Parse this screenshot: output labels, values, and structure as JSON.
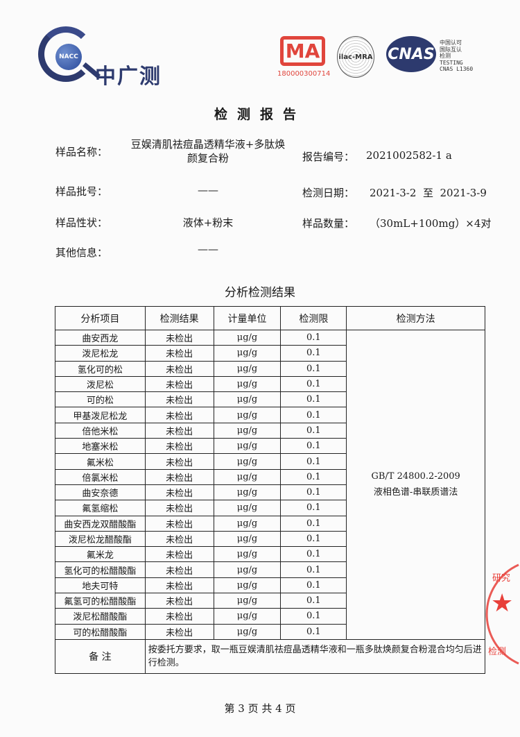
{
  "header": {
    "logo_badge": "NACC",
    "logo_name": "中广测",
    "cma_mark": "MA",
    "cma_number": "180000300714",
    "ilac_mark": "ilac-MRA",
    "cnas_mark": "CNAS",
    "cnas_text": [
      "中国认可",
      "国际互认",
      "检测",
      "TESTING",
      "CNAS L1360"
    ]
  },
  "title": "检测报告",
  "info": {
    "sample_name_label": "样品名称：",
    "sample_name_line1": "豆娱清肌祛痘晶透精华液+多肽焕",
    "sample_name_line2": "颜复合粉",
    "report_no_label": "报告编号：",
    "report_no": "2021002582-1 a",
    "batch_label": "样品批号：",
    "batch": "——",
    "test_date_label": "检测日期：",
    "test_date_from": "2021-3-2",
    "test_date_to_word": "至",
    "test_date_to": "2021-3-9",
    "state_label": "样品性状：",
    "state": "液体+粉末",
    "quantity_label": "样品数量：",
    "quantity": "（30mL+100mg）×4对",
    "other_label": "其他信息：",
    "other": "——"
  },
  "results": {
    "heading": "分析检测结果",
    "columns": [
      "分析项目",
      "检测结果",
      "计量单位",
      "检测限",
      "检测方法"
    ],
    "rows": [
      [
        "曲安西龙",
        "未检出",
        "μg/g",
        "0.1"
      ],
      [
        "泼尼松龙",
        "未检出",
        "μg/g",
        "0.1"
      ],
      [
        "氢化可的松",
        "未检出",
        "μg/g",
        "0.1"
      ],
      [
        "泼尼松",
        "未检出",
        "μg/g",
        "0.1"
      ],
      [
        "可的松",
        "未检出",
        "μg/g",
        "0.1"
      ],
      [
        "甲基泼尼松龙",
        "未检出",
        "μg/g",
        "0.1"
      ],
      [
        "倍他米松",
        "未检出",
        "μg/g",
        "0.1"
      ],
      [
        "地塞米松",
        "未检出",
        "μg/g",
        "0.1"
      ],
      [
        "氟米松",
        "未检出",
        "μg/g",
        "0.1"
      ],
      [
        "倍氯米松",
        "未检出",
        "μg/g",
        "0.1"
      ],
      [
        "曲安奈德",
        "未检出",
        "μg/g",
        "0.1"
      ],
      [
        "氟氢缩松",
        "未检出",
        "μg/g",
        "0.1"
      ],
      [
        "曲安西龙双醋酸酯",
        "未检出",
        "μg/g",
        "0.1"
      ],
      [
        "泼尼松龙醋酸酯",
        "未检出",
        "μg/g",
        "0.1"
      ],
      [
        "氟米龙",
        "未检出",
        "μg/g",
        "0.1"
      ],
      [
        "氢化可的松醋酸酯",
        "未检出",
        "μg/g",
        "0.1"
      ],
      [
        "地夫可特",
        "未检出",
        "μg/g",
        "0.1"
      ],
      [
        "氟氢可的松醋酸酯",
        "未检出",
        "μg/g",
        "0.1"
      ],
      [
        "泼尼松醋酸酯",
        "未检出",
        "μg/g",
        "0.1"
      ],
      [
        "可的松醋酸酯",
        "未检出",
        "μg/g",
        "0.1"
      ]
    ],
    "method_line1": "GB/T 24800.2-2009",
    "method_line2": "液相色谱-串联质谱法",
    "note_label": "备 注",
    "note_text": "按委托方要求，取一瓶豆娱清肌祛痘晶透精华液和一瓶多肽焕颜复合粉混合均匀后进行检测。"
  },
  "stamp": {
    "text_top": "研究",
    "text_bottom": "检测"
  },
  "footer": "第 3 页  共 4 页"
}
